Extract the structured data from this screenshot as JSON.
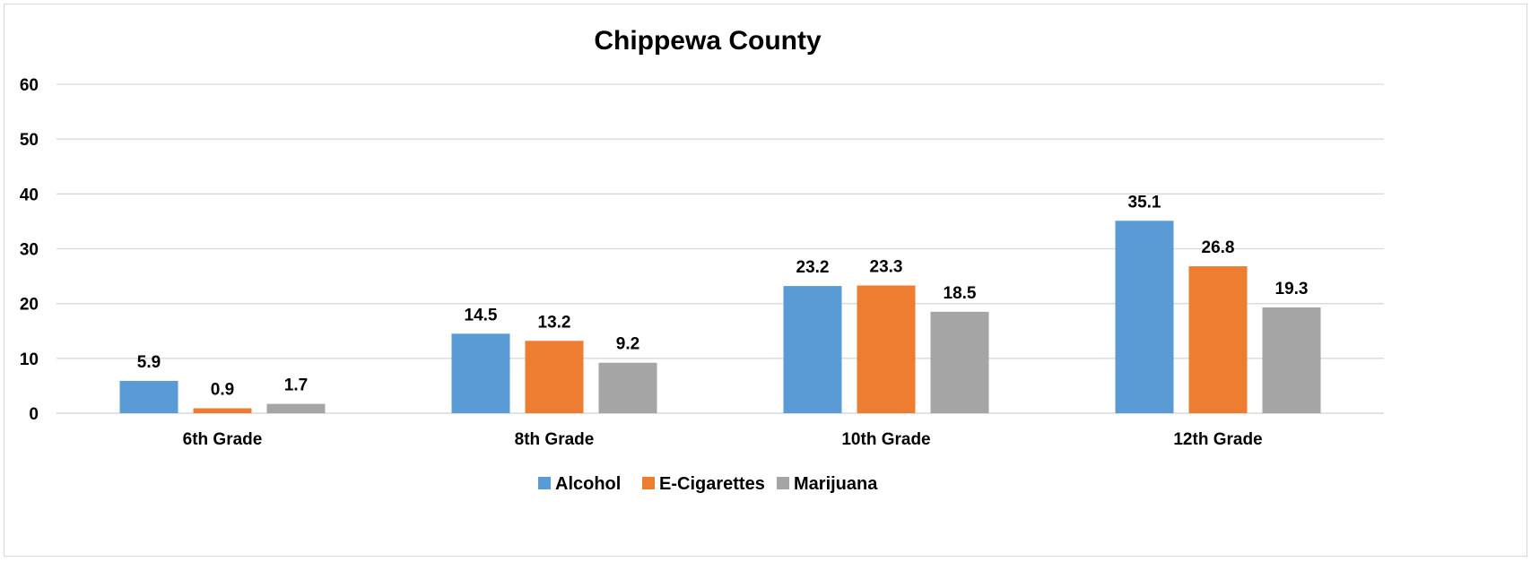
{
  "chart_data": {
    "type": "bar",
    "title": "Chippewa County",
    "xlabel": "",
    "ylabel": "",
    "categories": [
      "6th Grade",
      "8th Grade",
      "10th Grade",
      "12th Grade"
    ],
    "series": [
      {
        "name": "Alcohol",
        "color": "#5b9bd5",
        "values": [
          5.9,
          14.5,
          23.2,
          35.1
        ]
      },
      {
        "name": "E-Cigarettes",
        "color": "#ed7d31",
        "values": [
          0.9,
          13.2,
          23.3,
          26.8
        ]
      },
      {
        "name": "Marijuana",
        "color": "#a5a5a5",
        "values": [
          1.7,
          9.2,
          18.5,
          19.3
        ]
      }
    ],
    "ylim": [
      0,
      60
    ],
    "yticks": [
      0,
      10,
      20,
      30,
      40,
      50,
      60
    ],
    "grid": true,
    "legend_position": "bottom",
    "data_labels": true
  }
}
